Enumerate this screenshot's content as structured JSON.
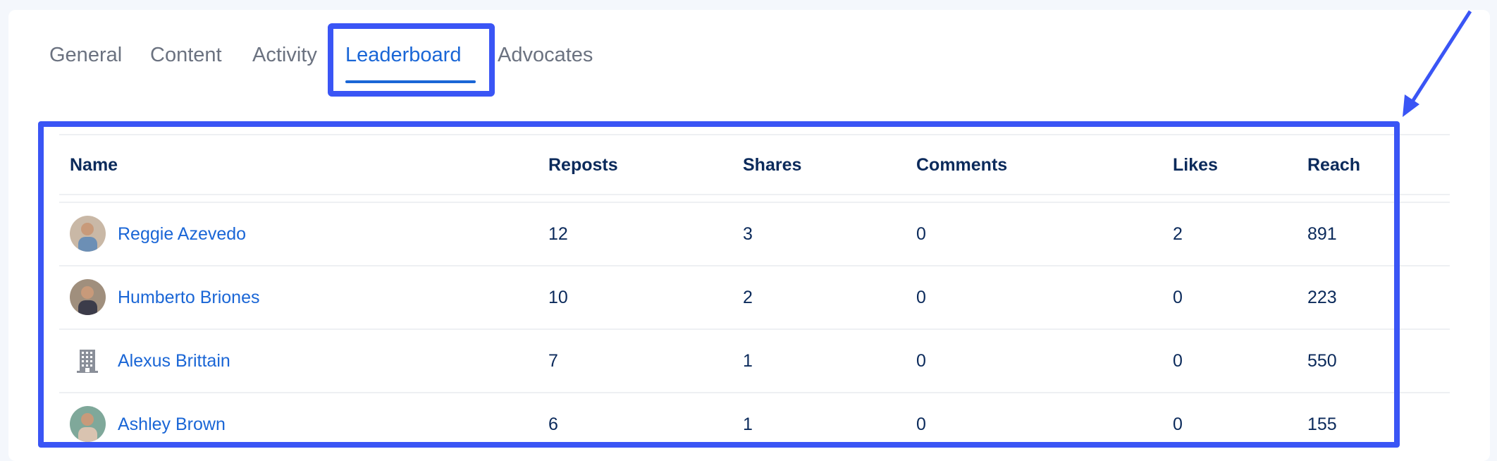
{
  "tabs": [
    {
      "label": "General"
    },
    {
      "label": "Content"
    },
    {
      "label": "Activity"
    },
    {
      "label": "Leaderboard",
      "active": true
    },
    {
      "label": "Advocates"
    }
  ],
  "table": {
    "headers": [
      "Name",
      "Reposts",
      "Shares",
      "Comments",
      "Likes",
      "Reach"
    ],
    "rows": [
      {
        "name": "Reggie Azevedo",
        "avatar": "photo",
        "reposts": "12",
        "shares": "3",
        "comments": "0",
        "likes": "2",
        "reach": "891"
      },
      {
        "name": "Humberto Briones",
        "avatar": "photo",
        "reposts": "10",
        "shares": "2",
        "comments": "0",
        "likes": "0",
        "reach": "223"
      },
      {
        "name": "Alexus Brittain",
        "avatar": "building-icon",
        "reposts": "7",
        "shares": "1",
        "comments": "0",
        "likes": "0",
        "reach": "550"
      },
      {
        "name": "Ashley Brown",
        "avatar": "photo",
        "reposts": "6",
        "shares": "1",
        "comments": "0",
        "likes": "0",
        "reach": "155"
      }
    ]
  },
  "colors": {
    "accent": "#1a66d6",
    "text": "#0b2a5b",
    "annotation": "#3a55f5",
    "tab_inactive": "#6b7280"
  }
}
